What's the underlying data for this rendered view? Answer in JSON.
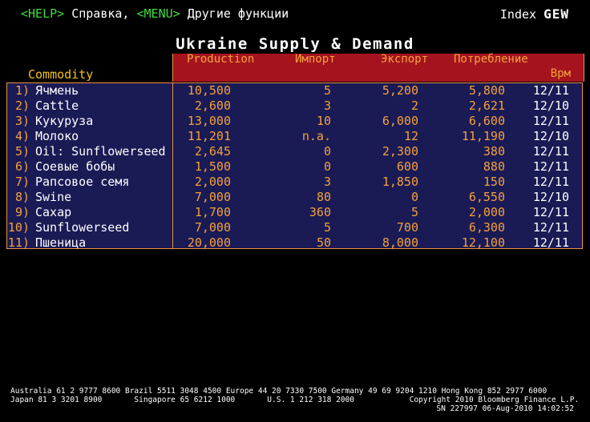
{
  "topbar": {
    "help_key": "<HELP>",
    "help_text": "Справка,",
    "menu_key": "<MENU>",
    "menu_text": "Другие функции",
    "index_label": "Index",
    "index_code": "GEW"
  },
  "title": "Ukraine Supply & Demand",
  "headers": {
    "commodity": "Commodity",
    "production": "Production",
    "import": "Импорт",
    "export": "Экспорт",
    "consumption": "Потребление",
    "time": "Врм"
  },
  "rows": [
    {
      "num": "1)",
      "name": "Ячмень",
      "production": "10,500",
      "import": "5",
      "export": "5,200",
      "consumption": "5,800",
      "date": "12/11"
    },
    {
      "num": "2)",
      "name": "Cattle",
      "production": "2,600",
      "import": "3",
      "export": "2",
      "consumption": "2,621",
      "date": "12/10"
    },
    {
      "num": "3)",
      "name": "Кукуруза",
      "production": "13,000",
      "import": "10",
      "export": "6,000",
      "consumption": "6,600",
      "date": "12/11"
    },
    {
      "num": "4)",
      "name": "Молоко",
      "production": "11,201",
      "import": "n.a.",
      "export": "12",
      "consumption": "11,190",
      "date": "12/10"
    },
    {
      "num": "5)",
      "name": "Oil: Sunflowerseed",
      "production": "2,645",
      "import": "0",
      "export": "2,300",
      "consumption": "380",
      "date": "12/11"
    },
    {
      "num": "6)",
      "name": "Соевые бобы",
      "production": "1,500",
      "import": "0",
      "export": "600",
      "consumption": "880",
      "date": "12/11"
    },
    {
      "num": "7)",
      "name": "Рапсовое семя",
      "production": "2,000",
      "import": "3",
      "export": "1,850",
      "consumption": "150",
      "date": "12/11"
    },
    {
      "num": "8)",
      "name": "Swine",
      "production": "7,000",
      "import": "80",
      "export": "0",
      "consumption": "6,550",
      "date": "12/10"
    },
    {
      "num": "9)",
      "name": "Сахар",
      "production": "1,700",
      "import": "360",
      "export": "5",
      "consumption": "2,000",
      "date": "12/11"
    },
    {
      "num": "10)",
      "name": "Sunflowerseed",
      "production": "7,000",
      "import": "5",
      "export": "700",
      "consumption": "6,300",
      "date": "12/11"
    },
    {
      "num": "11)",
      "name": "Пшеница",
      "production": "20,000",
      "import": "50",
      "export": "8,000",
      "consumption": "12,100",
      "date": "12/11"
    }
  ],
  "footer": {
    "line1": "Australia 61 2 9777 8600 Brazil 5511 3048 4500 Europe 44 20 7330 7500 Germany 49 69 9204 1210 Hong Kong 852 2977 6000",
    "line2": "Japan 81 3 3201 8900       Singapore 65 6212 1000       U.S. 1 212 318 2000            Copyright 2010 Bloomberg Finance L.P.",
    "line3": "SN 227997 06-Aug-2010 14:02:52"
  },
  "colors": {
    "background": "#000000",
    "header_band": "#a5141e",
    "grid_background": "#1a1a55",
    "value_text": "#f4a23c",
    "key_text": "#3fdc3f"
  }
}
